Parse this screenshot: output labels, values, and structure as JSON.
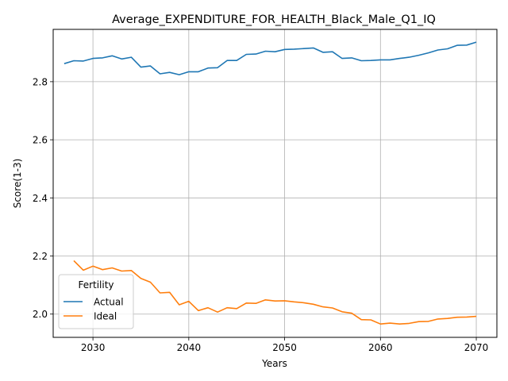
{
  "chart_data": {
    "type": "line",
    "title": "Average_EXPENDITURE_FOR_HEALTH_Black_Male_Q1_IQ",
    "xlabel": "Years",
    "ylabel": "Score(1-3)",
    "xlim": [
      2025.85,
      2072.15
    ],
    "ylim": [
      1.92,
      2.98
    ],
    "xticks": [
      2030,
      2040,
      2050,
      2060,
      2070
    ],
    "yticks": [
      2.0,
      2.2,
      2.4,
      2.6,
      2.8
    ],
    "xtick_labels": [
      "2030",
      "2040",
      "2050",
      "2060",
      "2070"
    ],
    "ytick_labels": [
      "2.0",
      "2.2",
      "2.4",
      "2.6",
      "2.8"
    ],
    "grid": true,
    "legend": {
      "title": "Fertility",
      "position": "lower-left"
    },
    "series": [
      {
        "name": "Actual",
        "color": "#1f77b4",
        "x": [
          2027,
          2028,
          2029,
          2030,
          2031,
          2032,
          2033,
          2034,
          2035,
          2036,
          2037,
          2038,
          2039,
          2040,
          2041,
          2042,
          2043,
          2044,
          2045,
          2046,
          2047,
          2048,
          2049,
          2050,
          2051,
          2052,
          2053,
          2054,
          2055,
          2056,
          2057,
          2058,
          2059,
          2060,
          2061,
          2062,
          2063,
          2064,
          2065,
          2066,
          2067,
          2068,
          2069,
          2070
        ],
        "values": [
          2.862,
          2.872,
          2.871,
          2.88,
          2.882,
          2.889,
          2.878,
          2.884,
          2.85,
          2.854,
          2.827,
          2.832,
          2.824,
          2.834,
          2.834,
          2.847,
          2.848,
          2.873,
          2.873,
          2.894,
          2.895,
          2.905,
          2.903,
          2.911,
          2.912,
          2.914,
          2.916,
          2.901,
          2.903,
          2.88,
          2.882,
          2.872,
          2.873,
          2.875,
          2.875,
          2.88,
          2.884,
          2.891,
          2.899,
          2.909,
          2.913,
          2.925,
          2.926,
          2.936
        ]
      },
      {
        "name": "Ideal",
        "color": "#ff7f0e",
        "x": [
          2028,
          2029,
          2030,
          2031,
          2032,
          2033,
          2034,
          2035,
          2036,
          2037,
          2038,
          2039,
          2040,
          2041,
          2042,
          2043,
          2044,
          2045,
          2046,
          2047,
          2048,
          2049,
          2050,
          2051,
          2052,
          2053,
          2054,
          2055,
          2056,
          2057,
          2058,
          2059,
          2060,
          2061,
          2062,
          2063,
          2064,
          2065,
          2066,
          2067,
          2068,
          2069,
          2070
        ],
        "values": [
          2.184,
          2.151,
          2.165,
          2.153,
          2.159,
          2.148,
          2.15,
          2.123,
          2.11,
          2.073,
          2.075,
          2.032,
          2.044,
          2.012,
          2.022,
          2.007,
          2.022,
          2.019,
          2.038,
          2.037,
          2.049,
          2.045,
          2.046,
          2.042,
          2.039,
          2.034,
          2.025,
          2.021,
          2.008,
          2.003,
          1.981,
          1.98,
          1.966,
          1.969,
          1.966,
          1.968,
          1.974,
          1.975,
          1.983,
          1.985,
          1.989,
          1.99,
          1.992
        ]
      }
    ]
  }
}
